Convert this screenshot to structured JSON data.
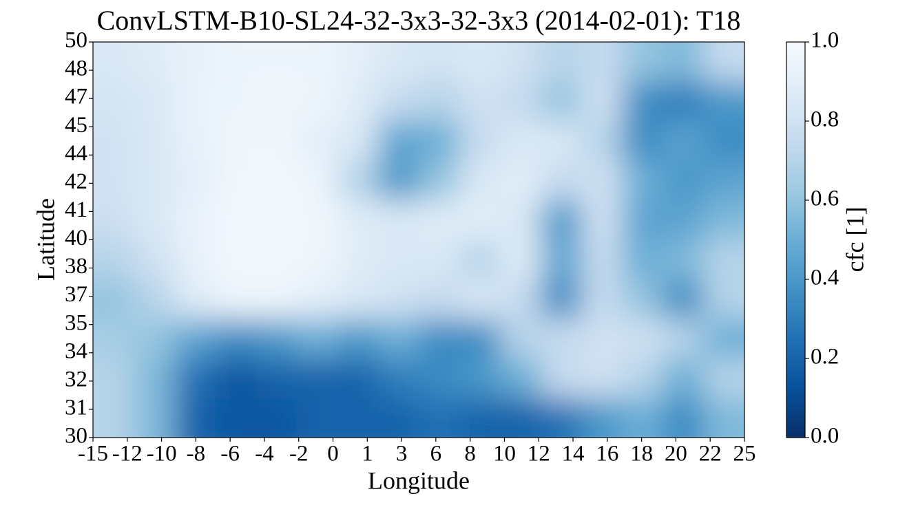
{
  "chart_data": {
    "type": "heatmap",
    "title": "ConvLSTM-B10-SL24-32-3x3-32-3x3 (2014-02-01):  T18",
    "x_label": "Longitude",
    "y_label": "Latitude",
    "colorbar_label": "cfc [1]",
    "xtick_labels": [
      -15,
      -12,
      -10,
      -8,
      -6,
      -4,
      -2,
      0,
      1,
      3,
      6,
      8,
      10,
      12,
      14,
      16,
      18,
      20,
      22,
      25
    ],
    "ytick_labels": [
      30,
      31,
      32,
      34,
      35,
      37,
      38,
      40,
      41,
      42,
      44,
      45,
      47,
      48,
      50
    ],
    "zlim": [
      0,
      1
    ],
    "zticks": [
      {
        "value": 0,
        "label": "0.0"
      },
      0.2,
      0.4,
      0.6,
      0.8,
      {
        "value": 1,
        "label": "1.0"
      }
    ],
    "colormap": [
      "#08306b",
      "#08519c",
      "#2171b5",
      "#4292c6",
      "#6baed6",
      "#9ecae1",
      "#c6dbef",
      "#deebf7",
      "#f7fbff"
    ],
    "values": [
      [
        0.85,
        0.88,
        0.92,
        0.95,
        0.95,
        0.95,
        0.9,
        0.85,
        0.82,
        0.85,
        0.8,
        0.7,
        0.75,
        0.6,
        0.55,
        0.75
      ],
      [
        0.82,
        0.85,
        0.93,
        0.95,
        0.96,
        0.95,
        0.88,
        0.75,
        0.7,
        0.8,
        0.75,
        0.6,
        0.8,
        0.35,
        0.3,
        0.4
      ],
      [
        0.8,
        0.85,
        0.92,
        0.96,
        0.97,
        0.9,
        0.85,
        0.45,
        0.5,
        0.75,
        0.85,
        0.85,
        0.7,
        0.35,
        0.45,
        0.35
      ],
      [
        0.8,
        0.85,
        0.9,
        0.97,
        0.98,
        0.95,
        0.7,
        0.4,
        0.6,
        0.85,
        0.9,
        0.75,
        0.8,
        0.5,
        0.4,
        0.45
      ],
      [
        0.78,
        0.85,
        0.93,
        0.98,
        0.98,
        0.97,
        0.88,
        0.85,
        0.88,
        0.9,
        0.85,
        0.4,
        0.8,
        0.45,
        0.45,
        0.55
      ],
      [
        0.7,
        0.8,
        0.92,
        0.98,
        0.98,
        0.96,
        0.88,
        0.85,
        0.85,
        0.7,
        0.88,
        0.45,
        0.75,
        0.5,
        0.55,
        0.7
      ],
      [
        0.6,
        0.7,
        0.88,
        0.95,
        0.95,
        0.9,
        0.85,
        0.8,
        0.75,
        0.85,
        0.75,
        0.35,
        0.75,
        0.6,
        0.35,
        0.7
      ],
      [
        0.65,
        0.6,
        0.45,
        0.35,
        0.4,
        0.5,
        0.4,
        0.5,
        0.35,
        0.35,
        0.7,
        0.75,
        0.8,
        0.8,
        0.7,
        0.5
      ],
      [
        0.7,
        0.55,
        0.25,
        0.15,
        0.2,
        0.2,
        0.2,
        0.3,
        0.35,
        0.4,
        0.5,
        0.75,
        0.8,
        0.7,
        0.5,
        0.7
      ],
      [
        0.7,
        0.55,
        0.2,
        0.15,
        0.15,
        0.2,
        0.2,
        0.2,
        0.25,
        0.2,
        0.2,
        0.25,
        0.4,
        0.5,
        0.35,
        0.55
      ]
    ]
  }
}
